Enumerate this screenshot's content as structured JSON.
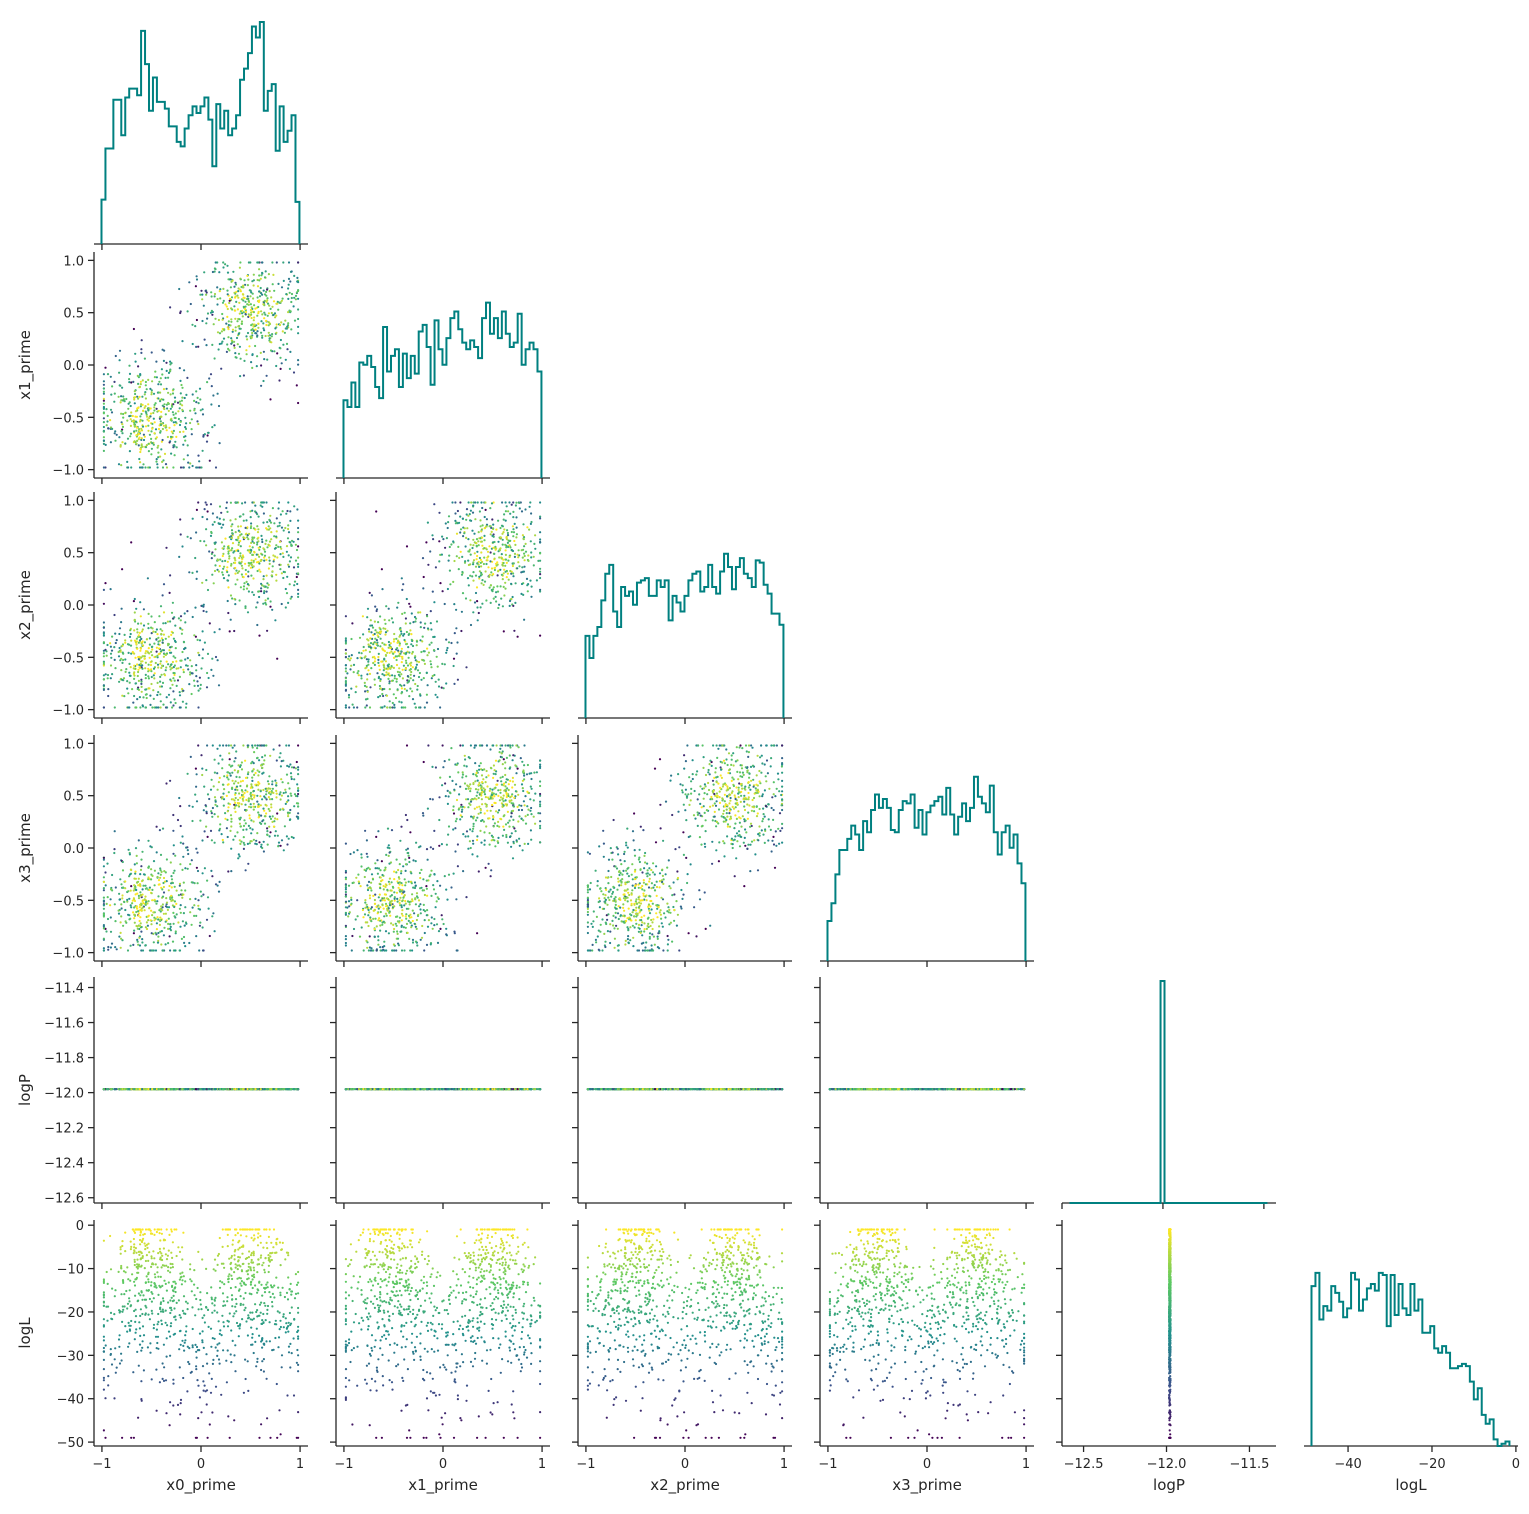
{
  "chart_data": {
    "type": "scatter",
    "variables": [
      "x0_prime",
      "x1_prime",
      "x2_prime",
      "x3_prime",
      "logP",
      "logL"
    ],
    "axis_labels": {
      "x0_prime": "x0_prime",
      "x1_prime": "x1_prime",
      "x2_prime": "x2_prime",
      "x3_prime": "x3_prime",
      "logP": "logP",
      "logL": "logL"
    },
    "ranges": {
      "x0_prime": [
        -1.08,
        1.08
      ],
      "x1_prime": [
        -1.08,
        1.08
      ],
      "x2_prime": [
        -1.08,
        1.08
      ],
      "x3_prime": [
        -1.08,
        1.08
      ],
      "logP": [
        -12.63,
        -11.34
      ],
      "logL": [
        -50.9,
        1.2
      ]
    },
    "diag_ranges": {
      "logP": [
        -12.5,
        -11.44
      ],
      "logL": [
        -50.5,
        0.5
      ]
    },
    "ticks": {
      "x0_prime": [
        -1,
        0,
        1
      ],
      "x1_prime": [
        -1,
        0,
        1
      ],
      "x2_prime": [
        -1,
        0,
        1
      ],
      "x3_prime": [
        -1,
        0,
        1
      ],
      "logP_x": [
        -12.5,
        -12.0,
        -11.5
      ],
      "logL_x": [
        -40,
        -20,
        0
      ],
      "logP_y": [
        -11.4,
        -11.6,
        -11.8,
        -12.0,
        -12.2,
        -12.4,
        -12.6
      ],
      "logL_y": [
        0,
        -10,
        -20,
        -30,
        -40,
        -50
      ],
      "prime_y": [
        1.0,
        0.5,
        0.0,
        -0.5,
        -1.0
      ]
    },
    "tick_labels": {
      "prime_x": [
        "−1",
        "0",
        "1"
      ],
      "prime_y": [
        "1.0",
        "0.5",
        "0.0",
        "−0.5",
        "−1.0"
      ],
      "logP_x": [
        "−12.5",
        "−12.0",
        "−11.5"
      ],
      "logP_y": [
        "−11.4",
        "−11.6",
        "−11.8",
        "−12.0",
        "−12.2",
        "−12.4",
        "−12.6"
      ],
      "logL_x": [
        "−40",
        "−20",
        "0"
      ],
      "logL_y": [
        "0",
        "−10",
        "−20",
        "−30",
        "−40",
        "−50"
      ]
    },
    "histograms": {
      "x0_prime": [
        0.2,
        0.43,
        0.43,
        0.65,
        0.65,
        0.49,
        0.66,
        0.7,
        0.7,
        0.67,
        0.96,
        0.81,
        0.6,
        0.75,
        0.64,
        0.64,
        0.61,
        0.53,
        0.53,
        0.46,
        0.44,
        0.52,
        0.58,
        0.62,
        0.59,
        0.62,
        0.66,
        0.56,
        0.35,
        0.63,
        0.52,
        0.6,
        0.49,
        0.52,
        0.58,
        0.74,
        0.79,
        0.86,
        0.98,
        0.93,
        1.0,
        0.6,
        0.69,
        0.72,
        0.42,
        0.62,
        0.46,
        0.51,
        0.58,
        0.19
      ],
      "x1_prime": [
        0.35,
        0.32,
        0.43,
        0.32,
        0.52,
        0.51,
        0.55,
        0.5,
        0.41,
        0.36,
        0.68,
        0.48,
        0.55,
        0.58,
        0.41,
        0.56,
        0.45,
        0.55,
        0.47,
        0.66,
        0.69,
        0.59,
        0.42,
        0.71,
        0.58,
        0.51,
        0.63,
        0.72,
        0.75,
        0.67,
        0.61,
        0.58,
        0.62,
        0.59,
        0.54,
        0.72,
        0.79,
        0.65,
        0.72,
        0.63,
        0.75,
        0.65,
        0.59,
        0.61,
        0.74,
        0.51,
        0.58,
        0.61,
        0.58,
        0.48
      ],
      "x2_prime": [
        0.37,
        0.27,
        0.37,
        0.41,
        0.53,
        0.65,
        0.69,
        0.48,
        0.41,
        0.59,
        0.55,
        0.57,
        0.51,
        0.61,
        0.62,
        0.63,
        0.55,
        0.55,
        0.62,
        0.59,
        0.62,
        0.44,
        0.55,
        0.52,
        0.48,
        0.55,
        0.62,
        0.65,
        0.66,
        0.57,
        0.59,
        0.69,
        0.59,
        0.56,
        0.66,
        0.74,
        0.68,
        0.58,
        0.68,
        0.72,
        0.65,
        0.63,
        0.59,
        0.71,
        0.7,
        0.6,
        0.56,
        0.47,
        0.47,
        0.42
      ],
      "x3_prime": [
        0.18,
        0.26,
        0.39,
        0.5,
        0.5,
        0.55,
        0.61,
        0.57,
        0.5,
        0.63,
        0.58,
        0.68,
        0.75,
        0.69,
        0.73,
        0.69,
        0.59,
        0.58,
        0.68,
        0.72,
        0.71,
        0.75,
        0.6,
        0.68,
        0.57,
        0.67,
        0.7,
        0.72,
        0.74,
        0.66,
        0.78,
        0.66,
        0.57,
        0.65,
        0.71,
        0.63,
        0.69,
        0.83,
        0.74,
        0.71,
        0.67,
        0.79,
        0.58,
        0.48,
        0.58,
        0.61,
        0.51,
        0.57,
        0.44,
        0.35
      ],
      "logP": [
        0.0,
        0.0,
        0.0,
        0.0,
        0.0,
        0.0,
        0.0,
        0.0,
        0.0,
        0.0,
        0.0,
        0.0,
        0.0,
        0.0,
        0.0,
        0.0,
        0.0,
        0.0,
        0.0,
        0.0,
        0.0,
        0.0,
        0.0,
        1.0,
        0.0,
        0.0,
        0.0,
        0.0,
        0.0,
        0.0,
        0.0,
        0.0,
        0.0,
        0.0,
        0.0,
        0.0,
        0.0,
        0.0,
        0.0,
        0.0,
        0.0,
        0.0,
        0.0,
        0.0,
        0.0,
        0.0,
        0.0,
        0.0,
        0.0,
        0.0
      ],
      "logL": [
        0.72,
        0.78,
        0.57,
        0.63,
        0.61,
        0.72,
        0.69,
        0.65,
        0.58,
        0.62,
        0.78,
        0.75,
        0.61,
        0.66,
        0.71,
        0.73,
        0.7,
        0.78,
        0.77,
        0.54,
        0.77,
        0.59,
        0.73,
        0.62,
        0.59,
        0.73,
        0.61,
        0.66,
        0.51,
        0.51,
        0.54,
        0.44,
        0.42,
        0.45,
        0.42,
        0.35,
        0.35,
        0.36,
        0.37,
        0.36,
        0.29,
        0.21,
        0.26,
        0.14,
        0.1,
        0.12,
        0.03,
        0.0,
        0.01,
        0.02
      ]
    },
    "histogram_shown_bins": {
      "logL": 50
    },
    "point_count": 1000,
    "cluster_centers": [
      [
        -0.5,
        -0.5,
        -0.5,
        -0.5
      ],
      [
        0.5,
        0.5,
        0.5,
        0.5
      ]
    ],
    "cluster_spread": 0.28,
    "logP_value": -11.98,
    "logL_range": [
      -49.0,
      -1.0
    ],
    "colormap": [
      "#440154",
      "#3b528b",
      "#21918c",
      "#5ec962",
      "#fde725"
    ],
    "hist_color": "#008080",
    "grid": false,
    "legend": false
  }
}
